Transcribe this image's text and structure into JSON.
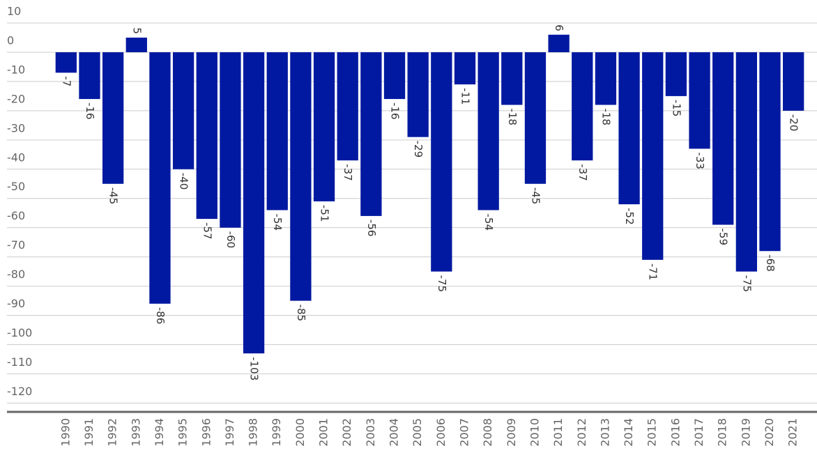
{
  "chart_data": {
    "type": "bar",
    "categories": [
      "1990",
      "1991",
      "1992",
      "1993",
      "1994",
      "1995",
      "1996",
      "1997",
      "1998",
      "1999",
      "2000",
      "2001",
      "2002",
      "2003",
      "2004",
      "2005",
      "2006",
      "2007",
      "2008",
      "2009",
      "2010",
      "2011",
      "2012",
      "2013",
      "2014",
      "2015",
      "2016",
      "2017",
      "2018",
      "2019",
      "2020",
      "2021"
    ],
    "values": [
      -7,
      -16,
      -45,
      5,
      -86,
      -40,
      -57,
      -60,
      -103,
      -54,
      -85,
      -51,
      -37,
      -56,
      -16,
      -29,
      -75,
      -11,
      -54,
      -18,
      -45,
      6,
      -37,
      -18,
      -52,
      -71,
      -15,
      -33,
      -59,
      -75,
      -68,
      -20
    ],
    "color": "#0019a0",
    "ylim": [
      -123,
      10
    ],
    "yticks": [
      10,
      0,
      -10,
      -20,
      -30,
      -40,
      -50,
      -60,
      -70,
      -80,
      -90,
      -100,
      -110,
      -120
    ],
    "grid": true
  }
}
